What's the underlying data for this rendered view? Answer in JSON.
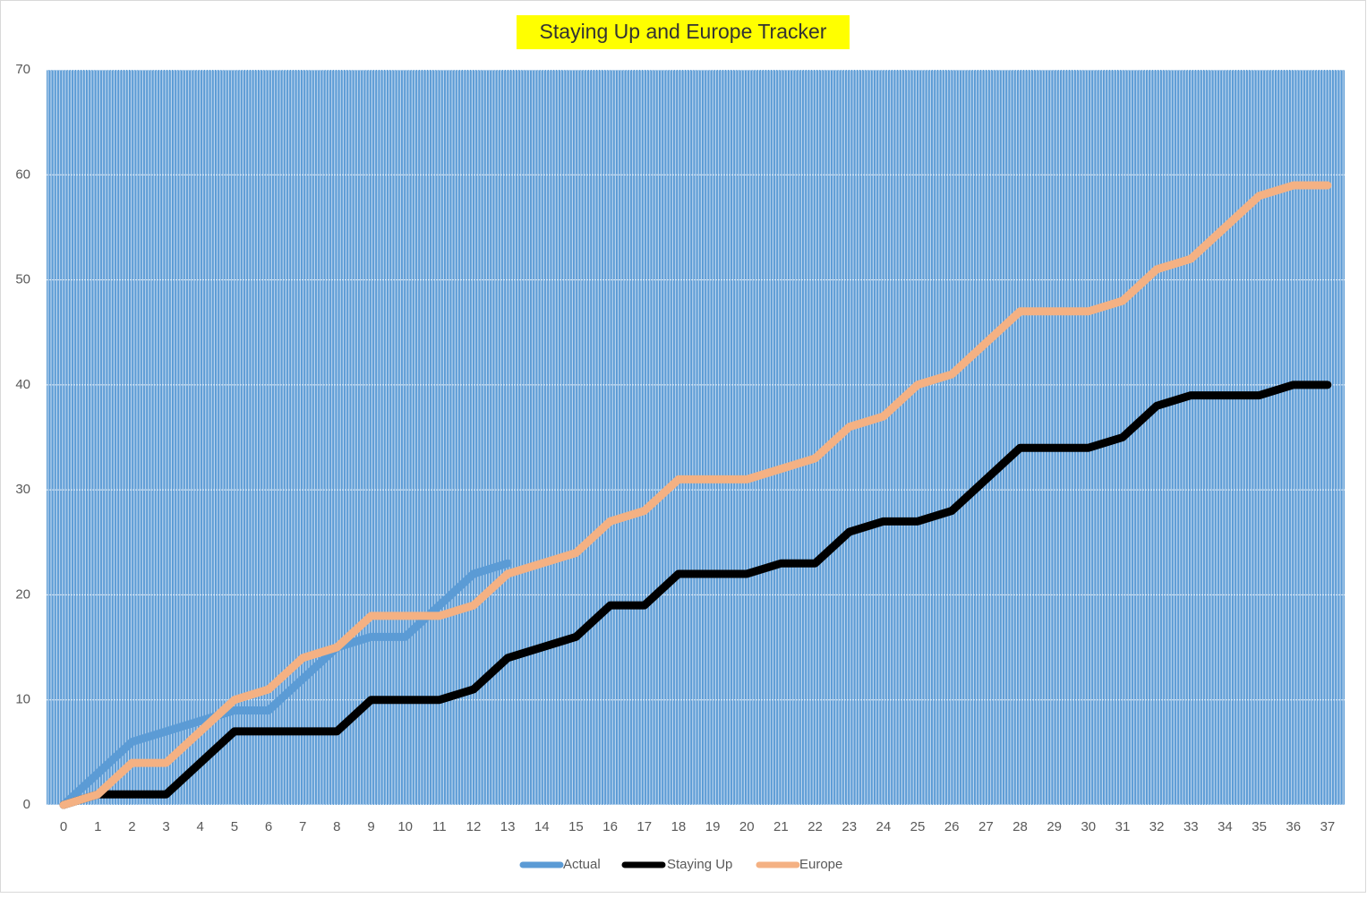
{
  "chart_data": {
    "type": "line",
    "title": "Staying Up and Europe Tracker",
    "categories": [
      0,
      1,
      2,
      3,
      4,
      5,
      6,
      7,
      8,
      9,
      10,
      11,
      12,
      13,
      14,
      15,
      16,
      17,
      18,
      19,
      20,
      21,
      22,
      23,
      24,
      25,
      26,
      27,
      28,
      29,
      30,
      31,
      32,
      33,
      34,
      35,
      36,
      37
    ],
    "series": [
      {
        "name": "Actual",
        "color": "#5b9bd5",
        "values": [
          0,
          3,
          6,
          7,
          8,
          9,
          9,
          12,
          15,
          16,
          16,
          19,
          22,
          23,
          null,
          null,
          null,
          null,
          null,
          null,
          null,
          null,
          null,
          null,
          null,
          null,
          null,
          null,
          null,
          null,
          null,
          null,
          null,
          null,
          null,
          null,
          null,
          null
        ]
      },
      {
        "name": "Staying Up",
        "color": "#000000",
        "values": [
          0,
          1,
          1,
          1,
          4,
          7,
          7,
          7,
          7,
          10,
          10,
          10,
          11,
          14,
          15,
          16,
          19,
          19,
          22,
          22,
          22,
          23,
          23,
          26,
          27,
          27,
          28,
          31,
          34,
          34,
          34,
          35,
          38,
          39,
          39,
          39,
          40,
          40
        ]
      },
      {
        "name": "Europe",
        "color": "#f4b183",
        "values": [
          0,
          1,
          4,
          4,
          7,
          10,
          11,
          14,
          15,
          18,
          18,
          18,
          19,
          22,
          23,
          24,
          27,
          28,
          31,
          31,
          31,
          32,
          33,
          36,
          37,
          40,
          41,
          44,
          47,
          47,
          47,
          48,
          51,
          52,
          55,
          58,
          59,
          59
        ]
      }
    ],
    "ylim": [
      0,
      70
    ],
    "yticks": [
      0,
      10,
      20,
      30,
      40,
      50,
      60,
      70
    ],
    "grid": true,
    "legend": "bottom"
  }
}
